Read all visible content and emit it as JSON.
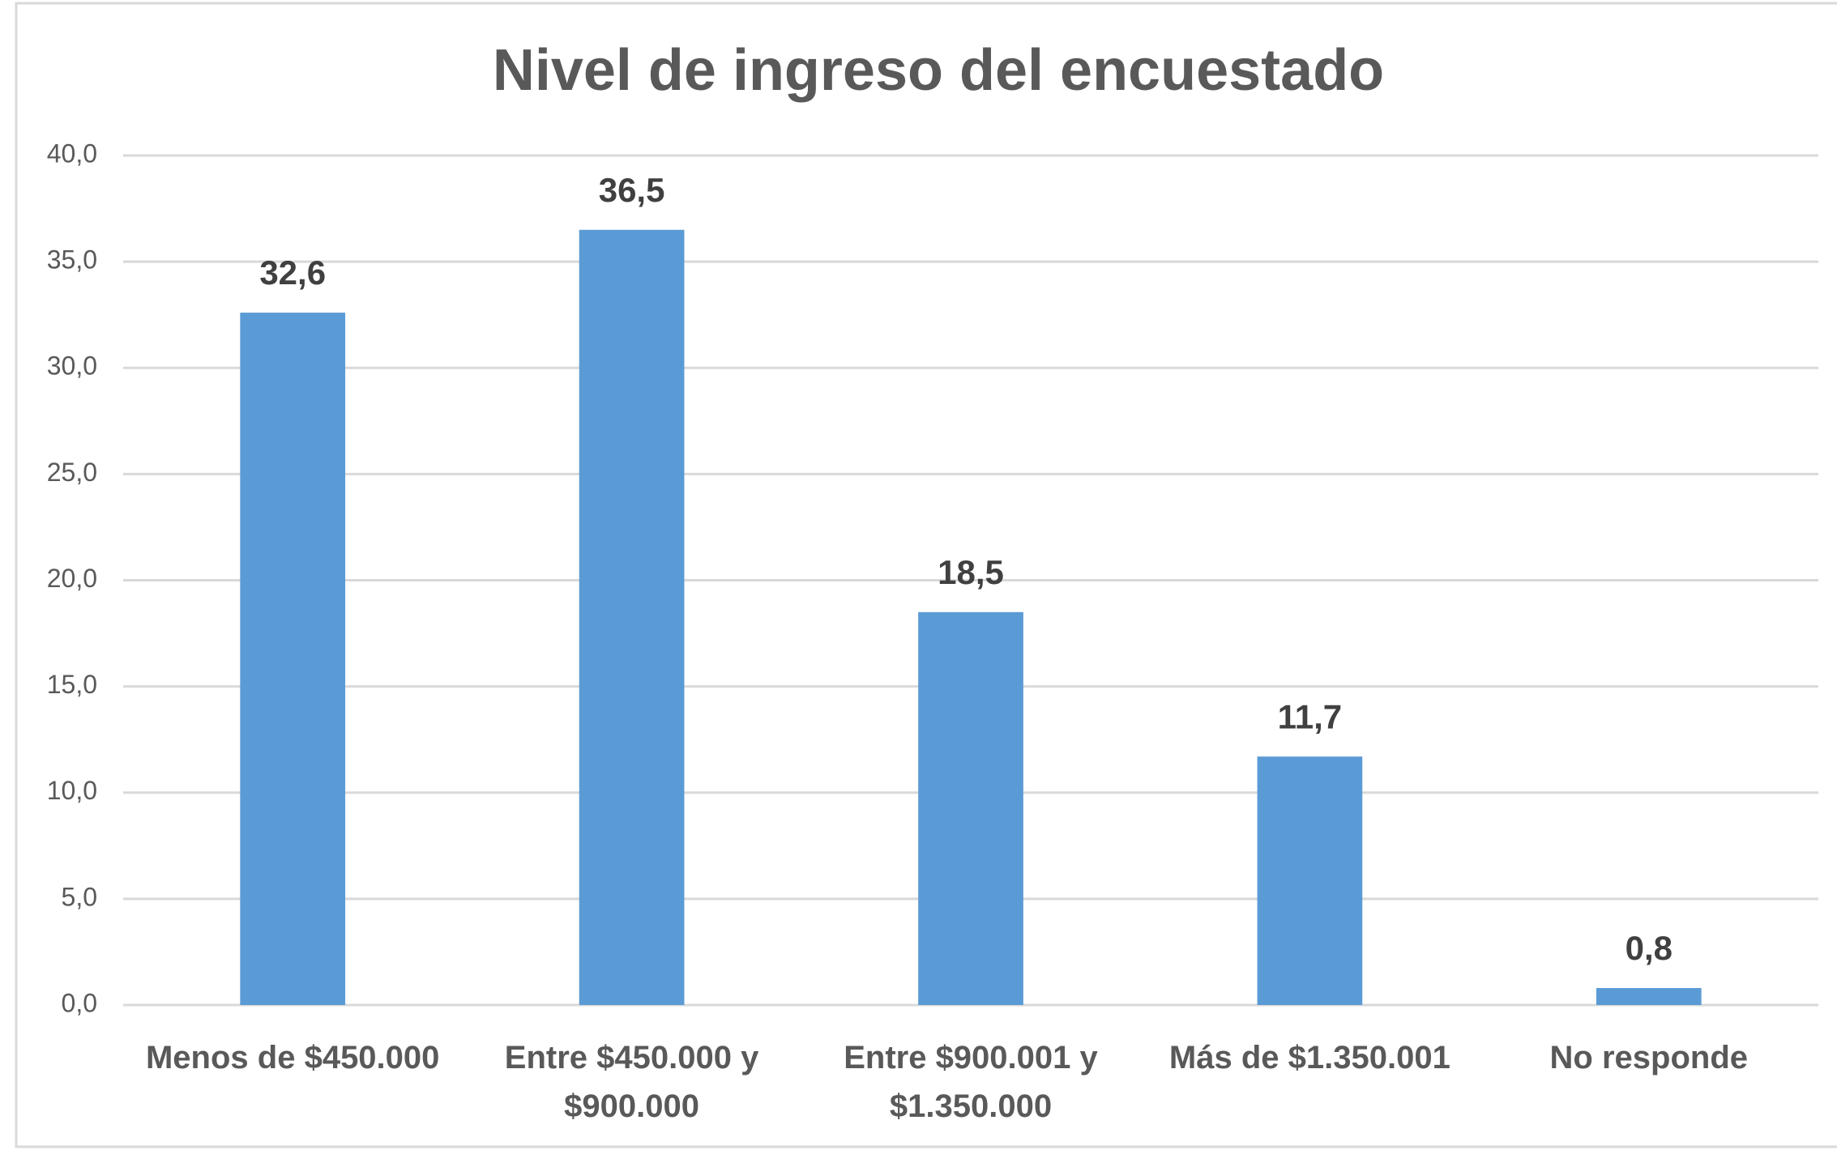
{
  "chart_data": {
    "type": "bar",
    "title": "Nivel de ingreso del encuestado",
    "categories": [
      "Menos de $450.000",
      "Entre $450.000 y $900.000",
      "Entre $900.001 y $1.350.000",
      "Más de $1.350.001",
      "No responde"
    ],
    "values": [
      32.6,
      36.5,
      18.5,
      11.7,
      0.8
    ],
    "value_labels": [
      "32,6",
      "36,5",
      "18,5",
      "11,7",
      "0,8"
    ],
    "color": "#5b9bd5",
    "ylim": [
      0,
      40
    ],
    "yticks": [
      {
        "value": 0,
        "label": "0,0"
      },
      {
        "value": 5,
        "label": "5,0"
      },
      {
        "value": 10,
        "label": "10,0"
      },
      {
        "value": 15,
        "label": "15,0"
      },
      {
        "value": 20,
        "label": "20,0"
      },
      {
        "value": 25,
        "label": "25,0"
      },
      {
        "value": 30,
        "label": "30,0"
      },
      {
        "value": 35,
        "label": "35,0"
      },
      {
        "value": 40,
        "label": "40,0"
      }
    ],
    "grid": true
  }
}
